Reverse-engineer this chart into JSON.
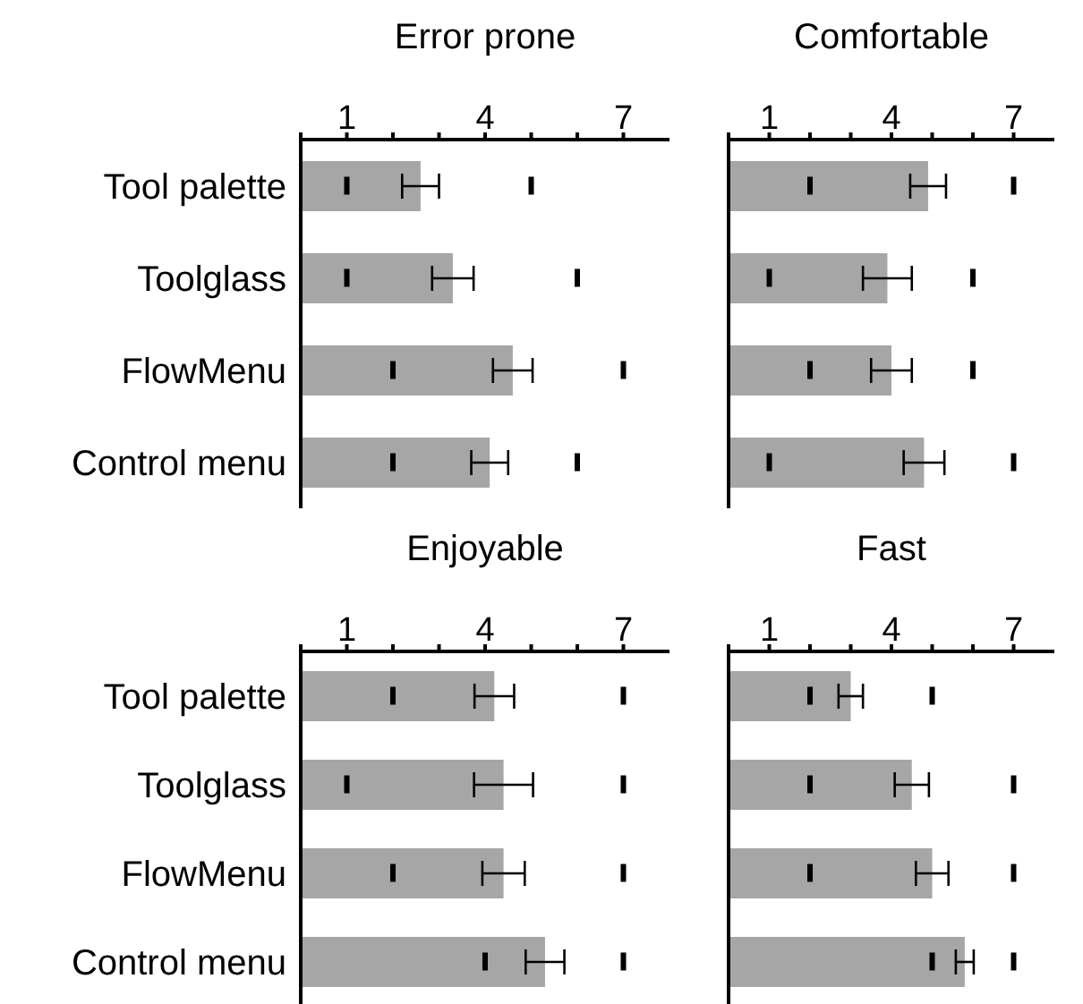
{
  "chart_data": [
    {
      "type": "bar",
      "title": "Error prone",
      "orientation": "horizontal",
      "categories": [
        "Tool palette",
        "Toolglass",
        "FlowMenu",
        "Control menu"
      ],
      "xlim": [
        0,
        8
      ],
      "xticks": [
        {
          "value": 0,
          "label": null
        },
        1,
        {
          "value": 2,
          "label": null
        },
        {
          "value": 3,
          "label": null
        },
        4,
        {
          "value": 5,
          "label": null
        },
        {
          "value": 6,
          "label": null
        },
        7
      ],
      "series": [
        {
          "type": "bar",
          "color": "#a6a6a6",
          "values": [
            2.6,
            3.3,
            4.6,
            4.1
          ],
          "errors": [
            0.4,
            0.45,
            0.43,
            0.4
          ]
        },
        {
          "type": "scatter",
          "color": "#000000",
          "x": [
            "Tool palette",
            "Toolglass",
            "FlowMenu",
            "Control menu"
          ],
          "values": [
            1,
            1,
            2,
            2
          ]
        },
        {
          "type": "scatter",
          "color": "#000000",
          "x": [
            "Tool palette",
            "Toolglass",
            "FlowMenu",
            "Control menu"
          ],
          "values": [
            5,
            6,
            7,
            6
          ]
        }
      ]
    },
    {
      "type": "bar",
      "title": "Comfortable",
      "orientation": "horizontal",
      "categories": [
        "Tool palette",
        "Toolglass",
        "FlowMenu",
        "Control menu"
      ],
      "xlim": [
        0,
        8
      ],
      "xticks": [
        {
          "value": 0,
          "label": null
        },
        1,
        {
          "value": 2,
          "label": null
        },
        {
          "value": 3,
          "label": null
        },
        4,
        {
          "value": 5,
          "label": null
        },
        {
          "value": 6,
          "label": null
        },
        7
      ],
      "tick_labels": "x",
      "series": [
        {
          "type": "bar",
          "color": "#a6a6a6",
          "values": [
            4.9,
            3.9,
            4.0,
            4.8
          ],
          "errors": [
            0.44,
            0.6,
            0.5,
            0.5
          ]
        },
        {
          "type": "scatter",
          "color": "#000000",
          "x": [
            "Tool palette",
            "Toolglass",
            "FlowMenu",
            "Control menu"
          ],
          "values": [
            2,
            1,
            2,
            1
          ]
        },
        {
          "type": "scatter",
          "color": "#000000",
          "x": [
            "Tool palette",
            "Toolglass",
            "FlowMenu",
            "Control menu"
          ],
          "values": [
            7,
            6,
            6,
            7
          ]
        }
      ]
    },
    {
      "type": "bar",
      "title": "Enjoyable",
      "orientation": "horizontal",
      "categories": [
        "Tool palette",
        "Toolglass",
        "FlowMenu",
        "Control menu"
      ],
      "xlim": [
        0,
        8
      ],
      "xticks": [
        {
          "value": 0,
          "label": null
        },
        1,
        {
          "value": 2,
          "label": null
        },
        {
          "value": 3,
          "label": null
        },
        4,
        {
          "value": 5,
          "label": null
        },
        {
          "value": 6,
          "label": null
        },
        7
      ],
      "series": [
        {
          "type": "bar",
          "color": "#a6a6a6",
          "values": [
            4.2,
            4.4,
            4.4,
            5.3
          ],
          "errors": [
            0.43,
            0.64,
            0.46,
            0.42
          ]
        },
        {
          "type": "scatter",
          "color": "#000000",
          "x": [
            "Tool palette",
            "Toolglass",
            "FlowMenu",
            "Control menu"
          ],
          "values": [
            2,
            1,
            2,
            4
          ]
        },
        {
          "type": "scatter",
          "color": "#000000",
          "x": [
            "Tool palette",
            "Toolglass",
            "FlowMenu",
            "Control menu"
          ],
          "values": [
            7,
            7,
            7,
            7
          ]
        }
      ]
    },
    {
      "type": "bar",
      "title": "Fast",
      "orientation": "horizontal",
      "categories": [
        "Tool palette",
        "Toolglass",
        "FlowMenu",
        "Control menu"
      ],
      "xlim": [
        0,
        8
      ],
      "xticks": [
        {
          "value": 0,
          "label": null
        },
        1,
        {
          "value": 2,
          "label": null
        },
        {
          "value": 3,
          "label": null
        },
        4,
        {
          "value": 5,
          "label": null
        },
        {
          "value": 6,
          "label": null
        },
        7
      ],
      "tick_labels": "x",
      "series": [
        {
          "type": "bar",
          "color": "#a6a6a6",
          "values": [
            3.0,
            4.5,
            5.0,
            5.8
          ],
          "errors": [
            0.3,
            0.42,
            0.4,
            0.22
          ]
        },
        {
          "type": "scatter",
          "color": "#000000",
          "x": [
            "Tool palette",
            "Toolglass",
            "FlowMenu",
            "Control menu"
          ],
          "values": [
            2,
            2,
            2,
            5
          ]
        },
        {
          "type": "scatter",
          "color": "#000000",
          "x": [
            "Tool palette",
            "Toolglass",
            "FlowMenu",
            "Control menu"
          ],
          "values": [
            5,
            7,
            7,
            7
          ]
        }
      ]
    }
  ]
}
